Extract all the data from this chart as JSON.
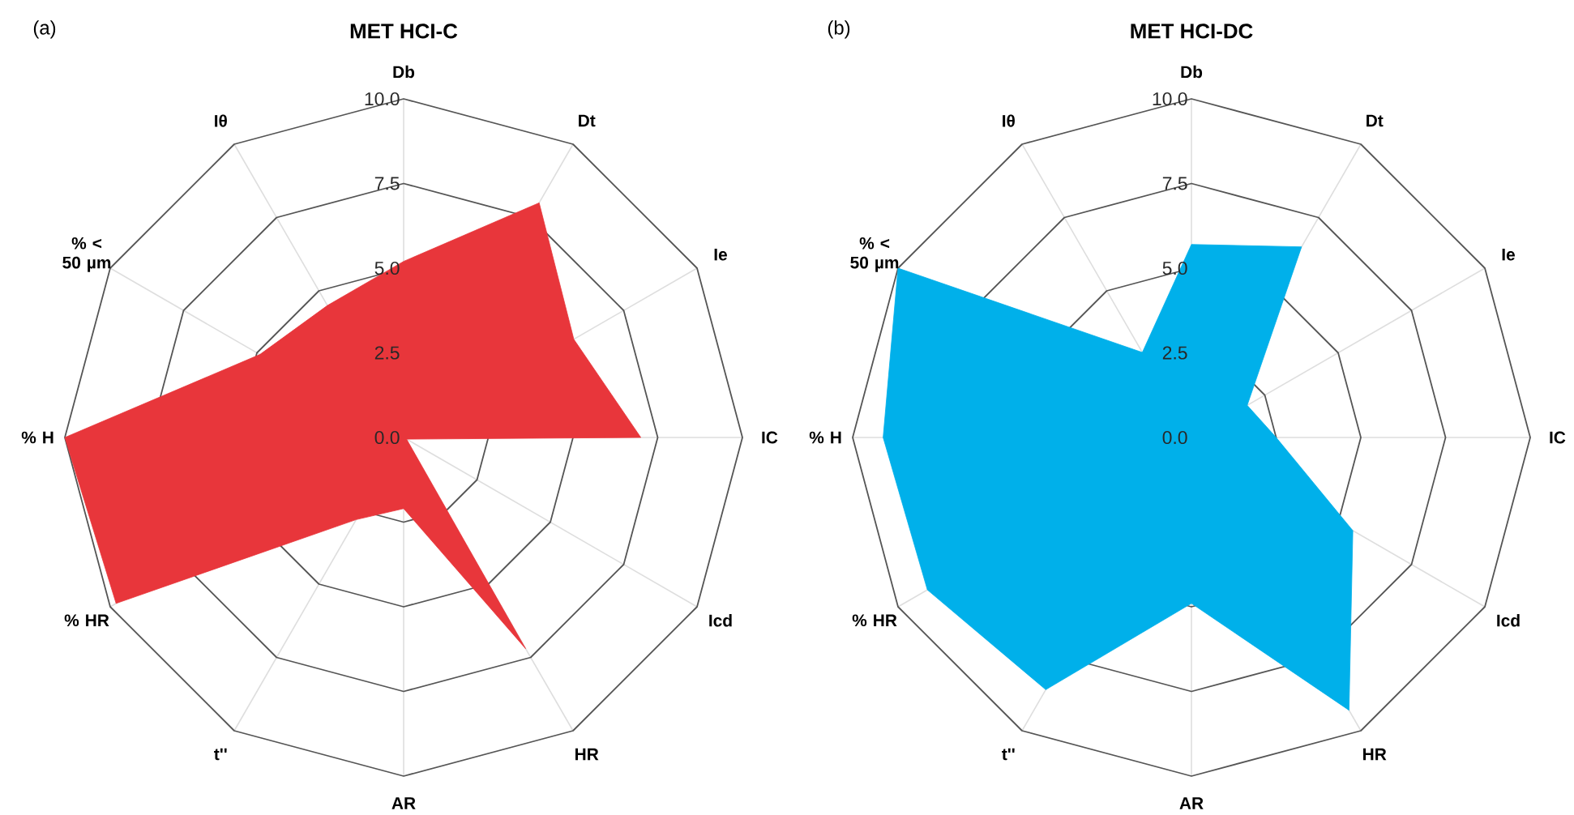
{
  "chart_data": [
    {
      "type": "radar",
      "title": "MET HCI-C",
      "annotations": [
        "(a)"
      ],
      "categories": [
        "Db",
        "Dt",
        "Ie",
        "IC",
        "Icd",
        "HR",
        "AR",
        "t''",
        "% HR",
        "% H",
        "% < 50 µm",
        "Iθ"
      ],
      "series": [
        {
          "color": "#e8363b",
          "values": [
            5.2,
            8.0,
            5.8,
            7.0,
            0.1,
            7.2,
            2.1,
            2.8,
            9.8,
            10.0,
            4.9,
            4.5
          ]
        }
      ],
      "ylim": [
        0,
        10
      ],
      "yticks": [
        {
          "value": 0,
          "label": "0.0"
        },
        {
          "value": 2.5,
          "label": "2.5"
        },
        {
          "value": 5,
          "label": "5.0"
        },
        {
          "value": 7.5,
          "label": "7.5"
        },
        {
          "value": 10,
          "label": "10.0"
        }
      ],
      "grid": true
    },
    {
      "type": "radar",
      "title": "MET HCI-DC",
      "annotations": [
        "(b)"
      ],
      "categories": [
        "Db",
        "Dt",
        "Ie",
        "IC",
        "Icd",
        "HR",
        "AR",
        "t''",
        "% HR",
        "% H",
        "% < 50 µm",
        "Iθ"
      ],
      "series": [
        {
          "color": "#00b0ea",
          "values": [
            5.7,
            6.5,
            1.9,
            2.5,
            5.5,
            9.3,
            4.9,
            8.6,
            9.0,
            9.1,
            10.0,
            2.9
          ]
        }
      ],
      "ylim": [
        0,
        10
      ],
      "yticks": [
        {
          "value": 0,
          "label": "0.0"
        },
        {
          "value": 2.5,
          "label": "2.5"
        },
        {
          "value": 5,
          "label": "5.0"
        },
        {
          "value": 7.5,
          "label": "7.5"
        },
        {
          "value": 10,
          "label": "10.0"
        }
      ],
      "grid": true
    }
  ]
}
